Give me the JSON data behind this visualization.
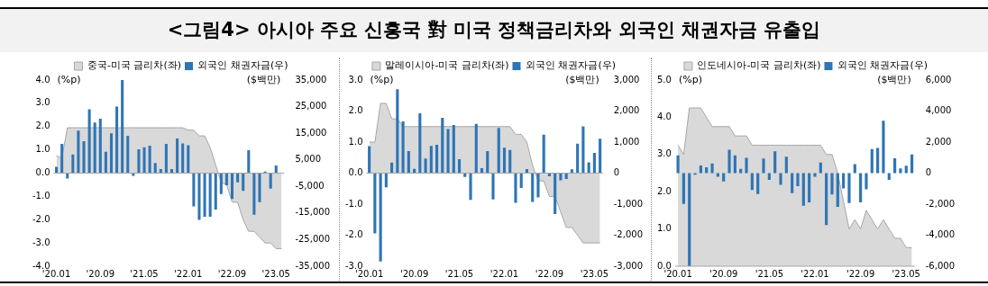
{
  "chart_data": [
    {
      "type": "bar",
      "title": "<그림4> 아시아 주요 신흥국 對 미국 정책금리차와 외국인 채권자금 유출입",
      "ylabel": "(%p)",
      "y2label": "($백만)",
      "legend": "top",
      "categories": [
        "'20.01",
        null,
        null,
        null,
        null,
        null,
        null,
        null,
        "'20.09",
        null,
        null,
        null,
        null,
        null,
        null,
        null,
        "'21.05",
        null,
        null,
        null,
        null,
        null,
        null,
        null,
        "'22.01",
        null,
        null,
        null,
        null,
        null,
        null,
        null,
        "'22.09",
        null,
        null,
        null,
        null,
        null,
        null,
        null,
        "'23.05",
        null
      ],
      "ylim": [
        -4,
        4
      ],
      "yticks": [
        {
          "value": -4,
          "label": "-4.0"
        },
        {
          "value": -3,
          "label": "-3.0"
        },
        {
          "value": -2,
          "label": "-2.0"
        },
        {
          "value": -1,
          "label": "-1.0"
        },
        {
          "value": 0,
          "label": "0.0"
        },
        {
          "value": 1,
          "label": "1.0"
        },
        {
          "value": 2,
          "label": "2.0"
        },
        {
          "value": 3,
          "label": "3.0"
        },
        {
          "value": 4,
          "label": "4.0"
        }
      ],
      "y2lim": [
        -35000,
        35000
      ],
      "y2ticks": [
        {
          "value": -35000,
          "label": "-35,000"
        },
        {
          "value": -25000,
          "label": "-25,000"
        },
        {
          "value": -15000,
          "label": "-15,000"
        },
        {
          "value": -5000,
          "label": "-5,000"
        },
        {
          "value": 5000,
          "label": "5,000"
        },
        {
          "value": 15000,
          "label": "15,000"
        },
        {
          "value": 25000,
          "label": "25,000"
        },
        {
          "value": 35000,
          "label": "35,000"
        }
      ],
      "series": [
        {
          "name": "중국-미국 금리차(좌)",
          "type": "area",
          "color": "#d9d9d9",
          "values": [
            0.75,
            0.65,
            1.95,
            1.95,
            1.95,
            1.95,
            1.95,
            1.95,
            1.95,
            1.95,
            1.95,
            1.95,
            1.95,
            1.95,
            1.95,
            1.95,
            1.95,
            1.95,
            1.95,
            1.95,
            1.95,
            1.95,
            1.95,
            1.95,
            1.85,
            1.85,
            1.6,
            1.6,
            1.1,
            0.35,
            -0.4,
            -0.5,
            -1.25,
            -1.25,
            -2.0,
            -2.5,
            -2.5,
            -2.75,
            -3.0,
            -3.0,
            -3.25,
            -3.25
          ]
        },
        {
          "name": "외국인 채권자금(우)",
          "color": "#2e75b6",
          "axis": "y2",
          "values": [
            2400,
            11000,
            -2000,
            7000,
            16000,
            12000,
            24000,
            19000,
            20500,
            8000,
            15000,
            25000,
            35000,
            14000,
            -1000,
            9000,
            9700,
            10300,
            3800,
            1500,
            11000,
            1500,
            13000,
            11200,
            10500,
            -12500,
            -17600,
            -16400,
            -16400,
            -13700,
            -7900,
            -4600,
            -9700,
            -3500,
            -6700,
            8600,
            -15600,
            -10900,
            600,
            -5800,
            2900,
            null
          ]
        }
      ]
    },
    {
      "type": "bar",
      "ylabel": "(%p)",
      "y2label": "($백만)",
      "legend": "top",
      "categories": [
        "'20.01",
        null,
        null,
        null,
        null,
        null,
        null,
        null,
        "'20.09",
        null,
        null,
        null,
        null,
        null,
        null,
        null,
        "'21.05",
        null,
        null,
        null,
        null,
        null,
        null,
        null,
        "'22.01",
        null,
        null,
        null,
        null,
        null,
        null,
        null,
        "'22.09",
        null,
        null,
        null,
        null,
        null,
        null,
        null,
        "'23.05",
        null
      ],
      "ylim": [
        -3,
        3
      ],
      "yticks": [
        {
          "value": -3,
          "label": "-3.0"
        },
        {
          "value": -2,
          "label": "-2.0"
        },
        {
          "value": -1,
          "label": "-1.0"
        },
        {
          "value": 0,
          "label": "0.0"
        },
        {
          "value": 1,
          "label": "1.0"
        },
        {
          "value": 2,
          "label": "2.0"
        },
        {
          "value": 3,
          "label": "3.0"
        }
      ],
      "y2lim": [
        -3000,
        3000
      ],
      "y2ticks": [
        {
          "value": -3000,
          "label": "-3,000"
        },
        {
          "value": -2000,
          "label": "-2,000"
        },
        {
          "value": -1000,
          "label": "-1,000"
        },
        0,
        {
          "value": 1000,
          "label": "1,000"
        },
        {
          "value": 2000,
          "label": "2,000"
        },
        {
          "value": 3000,
          "label": "3,000"
        }
      ],
      "series": [
        {
          "name": "말레이시아-미국 금리차(좌)",
          "type": "area",
          "color": "#d9d9d9",
          "values": [
            1.0,
            1.0,
            2.25,
            2.25,
            1.75,
            1.75,
            1.5,
            1.5,
            1.5,
            1.5,
            1.5,
            1.5,
            1.5,
            1.5,
            1.5,
            1.5,
            1.5,
            1.5,
            1.5,
            1.5,
            1.5,
            1.5,
            1.5,
            1.5,
            1.5,
            1.5,
            1.25,
            1.25,
            1.0,
            0.25,
            -0.25,
            -0.25,
            -0.75,
            -0.75,
            -1.25,
            -1.75,
            -1.75,
            -2.0,
            -2.25,
            -2.25,
            -2.25,
            -2.25
          ]
        },
        {
          "name": "외국인 채권자금(우)",
          "color": "#2e75b6",
          "axis": "y2",
          "values": [
            870,
            -1940,
            -2850,
            -460,
            340,
            2700,
            1670,
            710,
            140,
            1930,
            470,
            880,
            910,
            1780,
            1420,
            1550,
            450,
            -120,
            -860,
            1590,
            160,
            710,
            -850,
            1460,
            820,
            750,
            -960,
            -480,
            130,
            -930,
            -780,
            1240,
            -100,
            -1320,
            -230,
            -190,
            120,
            950,
            1510,
            350,
            650,
            1110
          ]
        }
      ]
    },
    {
      "type": "bar",
      "ylabel": "(%p)",
      "y2label": "($백만)",
      "legend": "top",
      "categories": [
        "'20.01",
        null,
        null,
        null,
        null,
        null,
        null,
        null,
        "'20.09",
        null,
        null,
        null,
        null,
        null,
        null,
        null,
        "'21.05",
        null,
        null,
        null,
        null,
        null,
        null,
        null,
        "'22.01",
        null,
        null,
        null,
        null,
        null,
        null,
        null,
        "'22.09",
        null,
        null,
        null,
        null,
        null,
        null,
        null,
        "'23.05",
        null
      ],
      "ylim": [
        0,
        5
      ],
      "yticks": [
        {
          "value": 0,
          "label": "0.0"
        },
        {
          "value": 1,
          "label": "1.0"
        },
        {
          "value": 2,
          "label": "2.0"
        },
        {
          "value": 3,
          "label": "3.0"
        },
        {
          "value": 4,
          "label": "4.0"
        },
        {
          "value": 5,
          "label": "5.0"
        }
      ],
      "y2lim": [
        -6000,
        6000
      ],
      "y2ticks": [
        {
          "value": -6000,
          "label": "-6,000"
        },
        {
          "value": -4000,
          "label": "-4,000"
        },
        {
          "value": -2000,
          "label": "-2,000"
        },
        0,
        {
          "value": 2000,
          "label": "2,000"
        },
        {
          "value": 4000,
          "label": "4,000"
        },
        {
          "value": 6000,
          "label": "6,000"
        }
      ],
      "series": [
        {
          "name": "인도네시아-미국 금리차(좌)",
          "type": "area",
          "color": "#d9d9d9",
          "values": [
            3.25,
            3.0,
            4.25,
            4.25,
            4.25,
            4.0,
            3.75,
            3.75,
            3.75,
            3.75,
            3.5,
            3.5,
            3.5,
            3.25,
            3.25,
            3.25,
            3.25,
            3.25,
            3.25,
            3.25,
            3.25,
            3.25,
            3.25,
            3.25,
            3.25,
            3.25,
            3.0,
            3.0,
            2.5,
            1.75,
            1.0,
            1.25,
            1.0,
            1.5,
            1.25,
            1.0,
            1.25,
            1.0,
            0.75,
            0.75,
            0.5,
            0.5
          ]
        },
        {
          "name": "외국인 채권자금(우)",
          "color": "#2e75b6",
          "axis": "y2",
          "values": [
            1140,
            -1990,
            -6000,
            -100,
            500,
            370,
            620,
            -230,
            -540,
            1510,
            1140,
            270,
            980,
            -1080,
            -1350,
            940,
            -440,
            1410,
            -760,
            1060,
            -1290,
            -840,
            -2100,
            -1890,
            -230,
            680,
            -3350,
            -1370,
            -2180,
            -980,
            -1930,
            580,
            -1890,
            -1040,
            1550,
            1630,
            3370,
            -440,
            960,
            310,
            480,
            1200
          ]
        }
      ]
    }
  ]
}
